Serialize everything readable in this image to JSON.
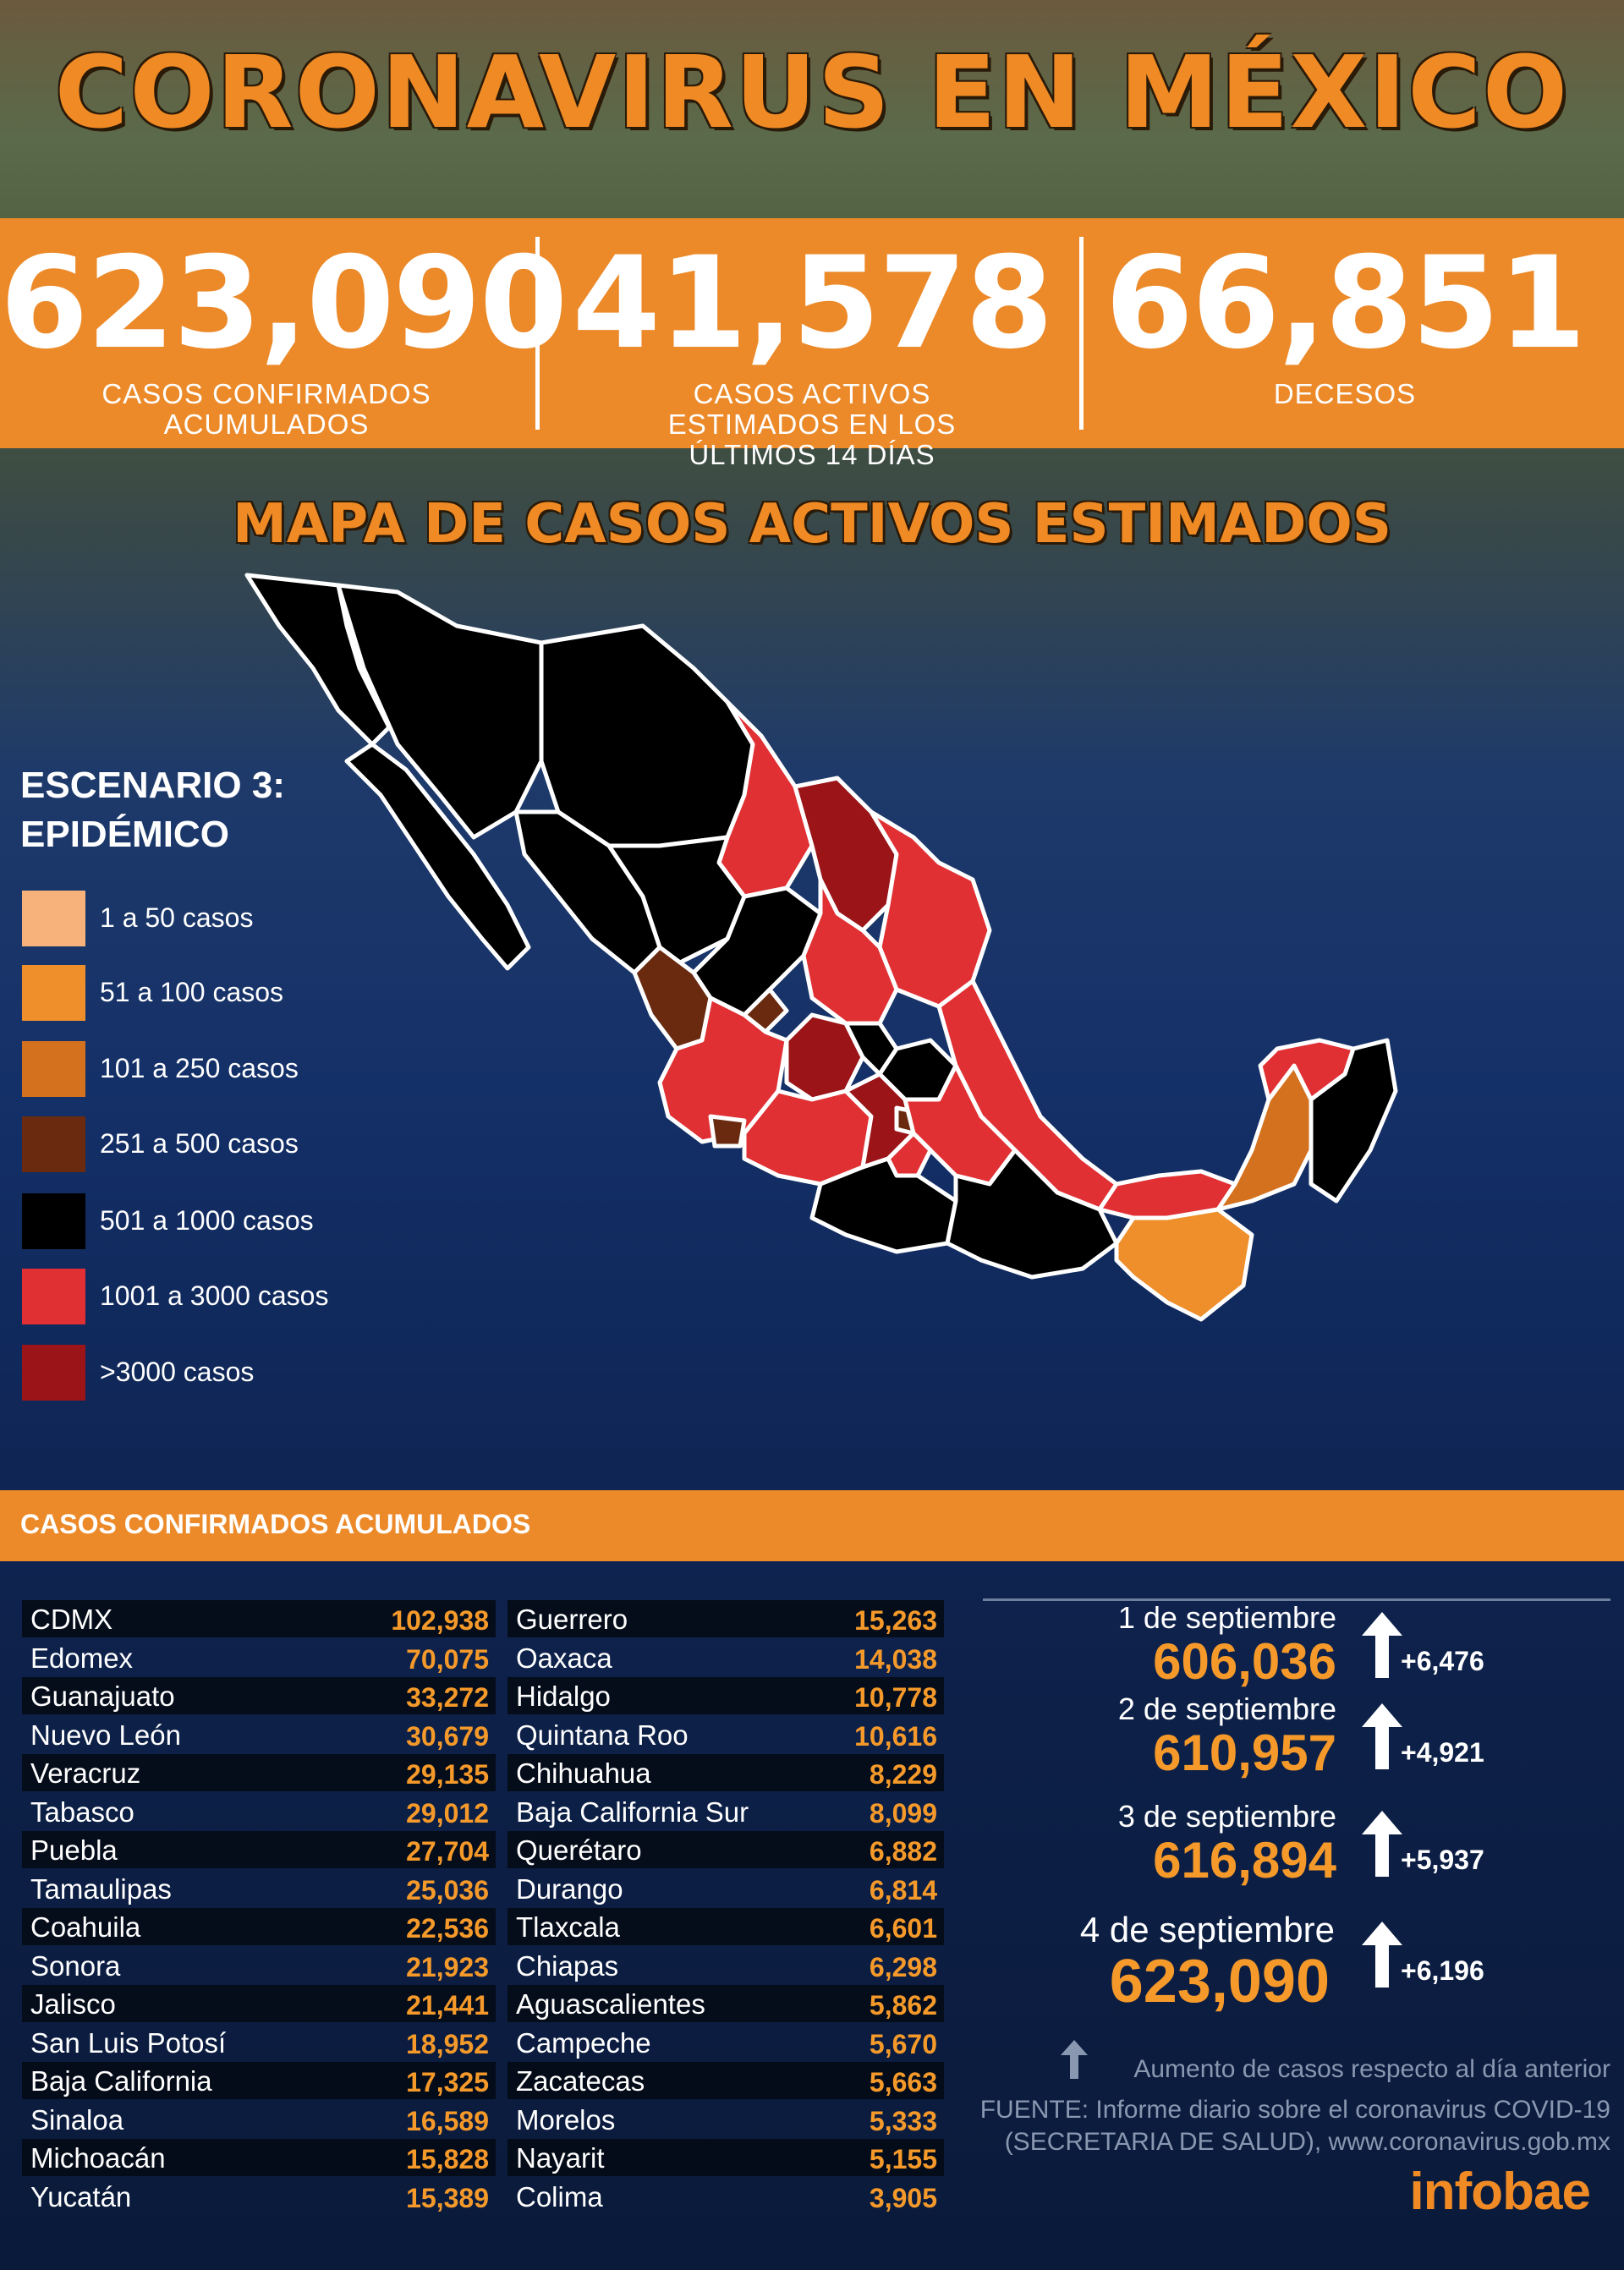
{
  "title": "CORONAVIRUS EN MÉXICO",
  "stats": [
    {
      "value": "623,090",
      "label": "CASOS CONFIRMADOS ACUMULADOS"
    },
    {
      "value": "41,578",
      "label": "CASOS ACTIVOS ESTIMADOS EN LOS ÚLTIMOS 14 DÍAS"
    },
    {
      "value": "66,851",
      "label": "DECESOS"
    }
  ],
  "map": {
    "title": "MAPA DE CASOS ACTIVOS ESTIMADOS",
    "scenario": "ESCENARIO 3:",
    "scenario_sub": "EPIDÉMICO"
  },
  "legend": [
    {
      "label": "1 a 50 casos",
      "color": "#f6b27a"
    },
    {
      "label": "51 a 100 casos",
      "color": "#ef8f2c"
    },
    {
      "label": "101 a 250 casos",
      "color": "#d4711e"
    },
    {
      "label": "251 a 500 casos",
      "color": "#6a2a10"
    },
    {
      "label": "501 a 1000 casos",
      "color": "#000000"
    },
    {
      "label": "1001 a 3000 casos",
      "color": "#e03034"
    },
    {
      "label": ">3000 casos",
      "color": "#9a1418"
    }
  ],
  "table_title": "CASOS CONFIRMADOS ACUMULADOS",
  "states_left": [
    {
      "name": "CDMX",
      "value": "102,938"
    },
    {
      "name": "Edomex",
      "value": "70,075"
    },
    {
      "name": "Guanajuato",
      "value": "33,272"
    },
    {
      "name": "Nuevo León",
      "value": "30,679"
    },
    {
      "name": "Veracruz",
      "value": "29,135"
    },
    {
      "name": "Tabasco",
      "value": "29,012"
    },
    {
      "name": "Puebla",
      "value": "27,704"
    },
    {
      "name": "Tamaulipas",
      "value": "25,036"
    },
    {
      "name": "Coahuila",
      "value": "22,536"
    },
    {
      "name": "Sonora",
      "value": "21,923"
    },
    {
      "name": "Jalisco",
      "value": "21,441"
    },
    {
      "name": "San Luis Potosí",
      "value": "18,952"
    },
    {
      "name": "Baja California",
      "value": "17,325"
    },
    {
      "name": "Sinaloa",
      "value": "16,589"
    },
    {
      "name": "Michoacán",
      "value": "15,828"
    },
    {
      "name": "Yucatán",
      "value": "15,389"
    }
  ],
  "states_right": [
    {
      "name": "Guerrero",
      "value": "15,263"
    },
    {
      "name": "Oaxaca",
      "value": "14,038"
    },
    {
      "name": "Hidalgo",
      "value": "10,778"
    },
    {
      "name": "Quintana Roo",
      "value": "10,616"
    },
    {
      "name": "Chihuahua",
      "value": "8,229"
    },
    {
      "name": "Baja California Sur",
      "value": "8,099"
    },
    {
      "name": "Querétaro",
      "value": "6,882"
    },
    {
      "name": "Durango",
      "value": "6,814"
    },
    {
      "name": "Tlaxcala",
      "value": "6,601"
    },
    {
      "name": "Chiapas",
      "value": "6,298"
    },
    {
      "name": "Aguascalientes",
      "value": "5,862"
    },
    {
      "name": "Campeche",
      "value": "5,670"
    },
    {
      "name": "Zacatecas",
      "value": "5,663"
    },
    {
      "name": "Morelos",
      "value": "5,333"
    },
    {
      "name": "Nayarit",
      "value": "5,155"
    },
    {
      "name": "Colima",
      "value": "3,905"
    }
  ],
  "daily": [
    {
      "date": "1 de septiembre",
      "total": "606,036",
      "increase": "+6,476"
    },
    {
      "date": "2 de septiembre",
      "total": "610,957",
      "increase": "+4,921"
    },
    {
      "date": "3 de septiembre",
      "total": "616,894",
      "increase": "+5,937"
    },
    {
      "date": "4 de septiembre",
      "total": "623,090",
      "increase": "+6,196"
    }
  ],
  "arrow_note": "Aumento de casos respecto al día anterior",
  "source_line1": "FUENTE:  Informe diario sobre el coronavirus COVID-19",
  "source_line2": "(SECRETARIA DE SALUD), www.coronavirus.gob.mx",
  "brand": "infobae"
}
